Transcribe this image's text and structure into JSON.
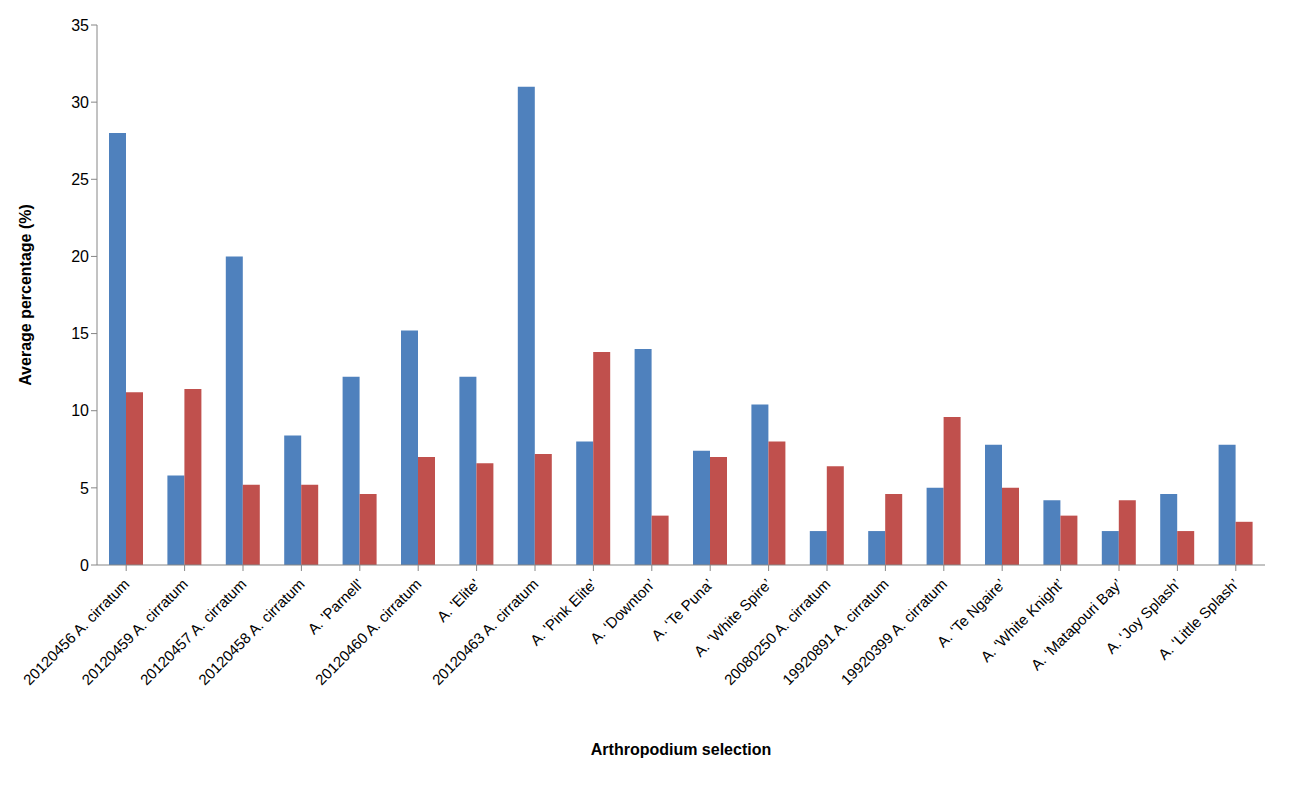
{
  "chart_data": {
    "type": "bar",
    "xlabel": "Arthropodium selection",
    "ylabel": "Average percentage (%)",
    "categories": [
      "20120456 A. cirratum",
      "20120459 A. cirratum",
      "20120457 A. cirratum",
      "20120458 A. cirratum",
      "A. 'Parnell'",
      "20120460 A. cirratum",
      "A. 'Elite'",
      "20120463 A. cirratum",
      "A. 'Pink Elite'",
      "A. ‘Downton’",
      "A. ‘Te Puna’",
      "A. ‘White Spire’",
      "20080250 A. cirratum",
      "19920891 A. cirratum",
      "19920399 A. cirratum",
      "A. ‘Te Ngaire’",
      "A. ‘White Knight’",
      "A. ‘Matapouri Bay’",
      "A. ‘Joy Splash’",
      "A. ‘Little Splash’"
    ],
    "series": [
      {
        "color": "#4f81bd",
        "values": [
          28,
          5.8,
          20,
          8.4,
          12.2,
          15.2,
          12.2,
          31,
          8,
          14,
          7.4,
          10.4,
          2.2,
          2.2,
          5,
          7.8,
          4.2,
          2.2,
          4.6,
          7.8
        ]
      },
      {
        "color": "#c0504d",
        "values": [
          11.2,
          11.4,
          5.2,
          5.2,
          4.6,
          7,
          6.6,
          7.2,
          13.8,
          3.2,
          7,
          8,
          6.4,
          4.6,
          9.6,
          5,
          3.2,
          4.2,
          2.2,
          2.8
        ]
      }
    ],
    "ylim": [
      0,
      35
    ],
    "yticks": [
      0,
      5,
      10,
      15,
      20,
      25,
      30,
      35
    ],
    "grid": false
  }
}
